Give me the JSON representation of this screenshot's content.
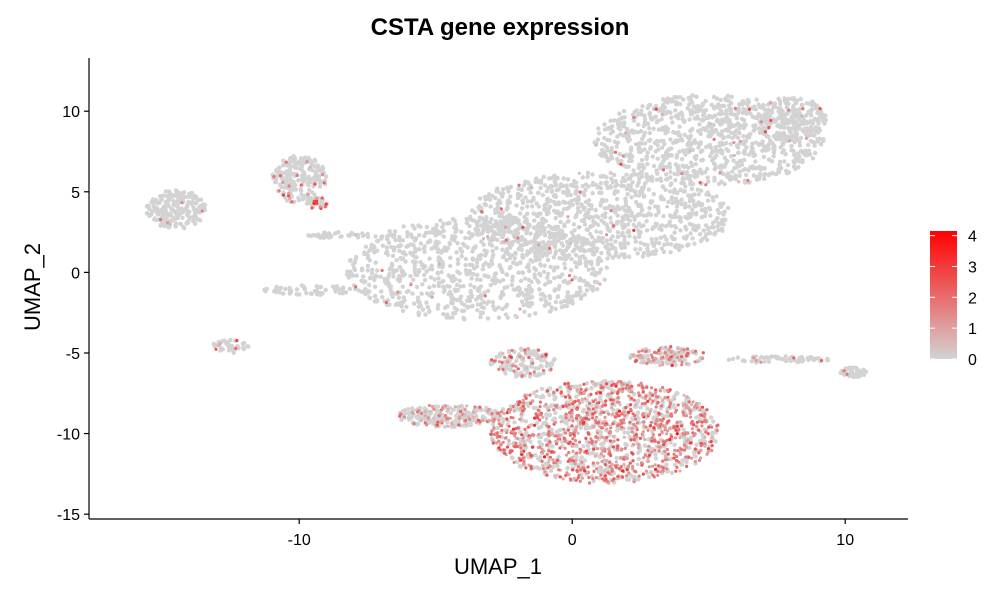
{
  "chart_data": {
    "type": "scatter",
    "title": "CSTA gene expression",
    "xlabel": "UMAP_1",
    "ylabel": "UMAP_2",
    "xlim": [
      -17.7,
      12.3
    ],
    "ylim": [
      -15.3,
      13.3
    ],
    "xticks": [
      -10,
      0,
      10
    ],
    "yticks": [
      -15,
      -10,
      -5,
      0,
      5,
      10
    ],
    "grid": false,
    "legend": {
      "position": "right",
      "kind": "colorbar",
      "ticks": [
        0,
        1,
        2,
        3,
        4
      ],
      "range": [
        0,
        4.15
      ],
      "color_low": "#d3d3d3",
      "color_high": "#ff0000"
    },
    "background_color": "#ffffff",
    "clusters": [
      {
        "name": "far-left blob",
        "center": [
          -14.5,
          3.9
        ],
        "radius": [
          1.1,
          1.2
        ],
        "points": 220,
        "expressed_fraction": 0.02,
        "mean_expression": 1.5
      },
      {
        "name": "left-top blob",
        "center": [
          -10.0,
          5.8
        ],
        "radius": [
          1.0,
          1.5
        ],
        "points": 200,
        "expressed_fraction": 0.06,
        "mean_expression": 1.8
      },
      {
        "name": "left-top blob tail",
        "center": [
          -9.4,
          4.3
        ],
        "radius": [
          0.5,
          0.4
        ],
        "points": 40,
        "expressed_fraction": 0.35,
        "mean_expression": 2.0
      },
      {
        "name": "left bridge strip",
        "center": [
          -8.5,
          2.3
        ],
        "radius": [
          1.2,
          0.2
        ],
        "points": 40,
        "expressed_fraction": 0.02,
        "mean_expression": 1.5
      },
      {
        "name": "left lower strip",
        "center": [
          -9.5,
          -1.1
        ],
        "radius": [
          1.8,
          0.3
        ],
        "points": 50,
        "expressed_fraction": 0.02,
        "mean_expression": 1.5
      },
      {
        "name": "small left cluster",
        "center": [
          -12.5,
          -4.6
        ],
        "radius": [
          0.7,
          0.4
        ],
        "points": 40,
        "expressed_fraction": 0.08,
        "mean_expression": 1.6
      },
      {
        "name": "central large blob",
        "center": [
          -3.5,
          0.2
        ],
        "radius": [
          4.8,
          3.2
        ],
        "points": 900,
        "expressed_fraction": 0.02,
        "mean_expression": 1.5
      },
      {
        "name": "central diagonal band",
        "center": [
          1.0,
          3.5
        ],
        "radius": [
          4.8,
          2.7
        ],
        "points": 900,
        "expressed_fraction": 0.02,
        "mean_expression": 1.5
      },
      {
        "name": "upper-right arm",
        "center": [
          5.0,
          8.2
        ],
        "radius": [
          4.2,
          2.8
        ],
        "points": 900,
        "expressed_fraction": 0.03,
        "mean_expression": 1.5
      },
      {
        "name": "upper-right head",
        "center": [
          8.0,
          9.5
        ],
        "radius": [
          1.3,
          1.4
        ],
        "points": 200,
        "expressed_fraction": 0.03,
        "mean_expression": 1.5
      },
      {
        "name": "lower-center dense blob",
        "center": [
          1.2,
          -9.9
        ],
        "radius": [
          4.2,
          3.2
        ],
        "points": 1500,
        "expressed_fraction": 0.6,
        "mean_expression": 1.6
      },
      {
        "name": "lower-left arm",
        "center": [
          -4.5,
          -8.9
        ],
        "radius": [
          1.9,
          0.7
        ],
        "points": 250,
        "expressed_fraction": 0.3,
        "mean_expression": 1.4
      },
      {
        "name": "lower connector stalk",
        "center": [
          -1.8,
          -5.6
        ],
        "radius": [
          1.2,
          0.9
        ],
        "points": 150,
        "expressed_fraction": 0.25,
        "mean_expression": 1.4
      },
      {
        "name": "lower upper-right arm",
        "center": [
          3.5,
          -5.2
        ],
        "radius": [
          1.4,
          0.6
        ],
        "points": 150,
        "expressed_fraction": 0.45,
        "mean_expression": 1.5
      },
      {
        "name": "right streak",
        "center": [
          7.5,
          -5.4
        ],
        "radius": [
          2.0,
          0.2
        ],
        "points": 60,
        "expressed_fraction": 0.05,
        "mean_expression": 1.5
      },
      {
        "name": "far-right blob",
        "center": [
          10.3,
          -6.2
        ],
        "radius": [
          0.5,
          0.3
        ],
        "points": 50,
        "expressed_fraction": 0.05,
        "mean_expression": 1.5
      }
    ]
  }
}
